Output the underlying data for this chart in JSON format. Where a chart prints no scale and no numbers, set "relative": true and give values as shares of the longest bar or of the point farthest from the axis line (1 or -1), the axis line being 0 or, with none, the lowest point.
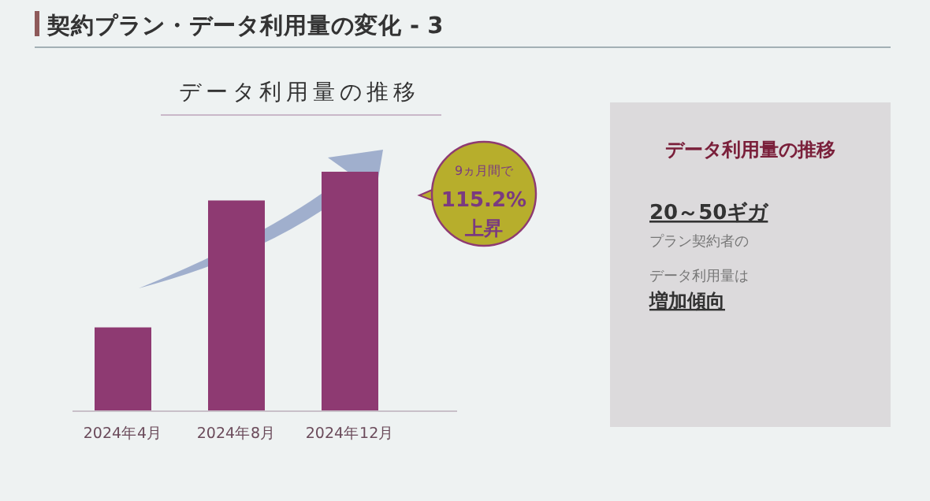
{
  "chart_data": [
    {
      "type": "bar",
      "title": "契約プラン・データ利用量の変化 - 3",
      "subtitle": "データ利用量の推移",
      "categories": [
        "2024年4月",
        "2024年8月",
        "2024年12月"
      ],
      "values": [
        0.35,
        0.88,
        1
      ],
      "color": "#8e3a72",
      "relative": true,
      "annotations": [
        "9ヵ月間で",
        "115.2%",
        "上昇"
      ]
    },
    {
      "type": "other",
      "title": "データ利用量の推移",
      "annotations": [
        "20～50ギガ",
        "プラン契約者の",
        "データ利用量は",
        "増加傾向"
      ]
    }
  ]
}
